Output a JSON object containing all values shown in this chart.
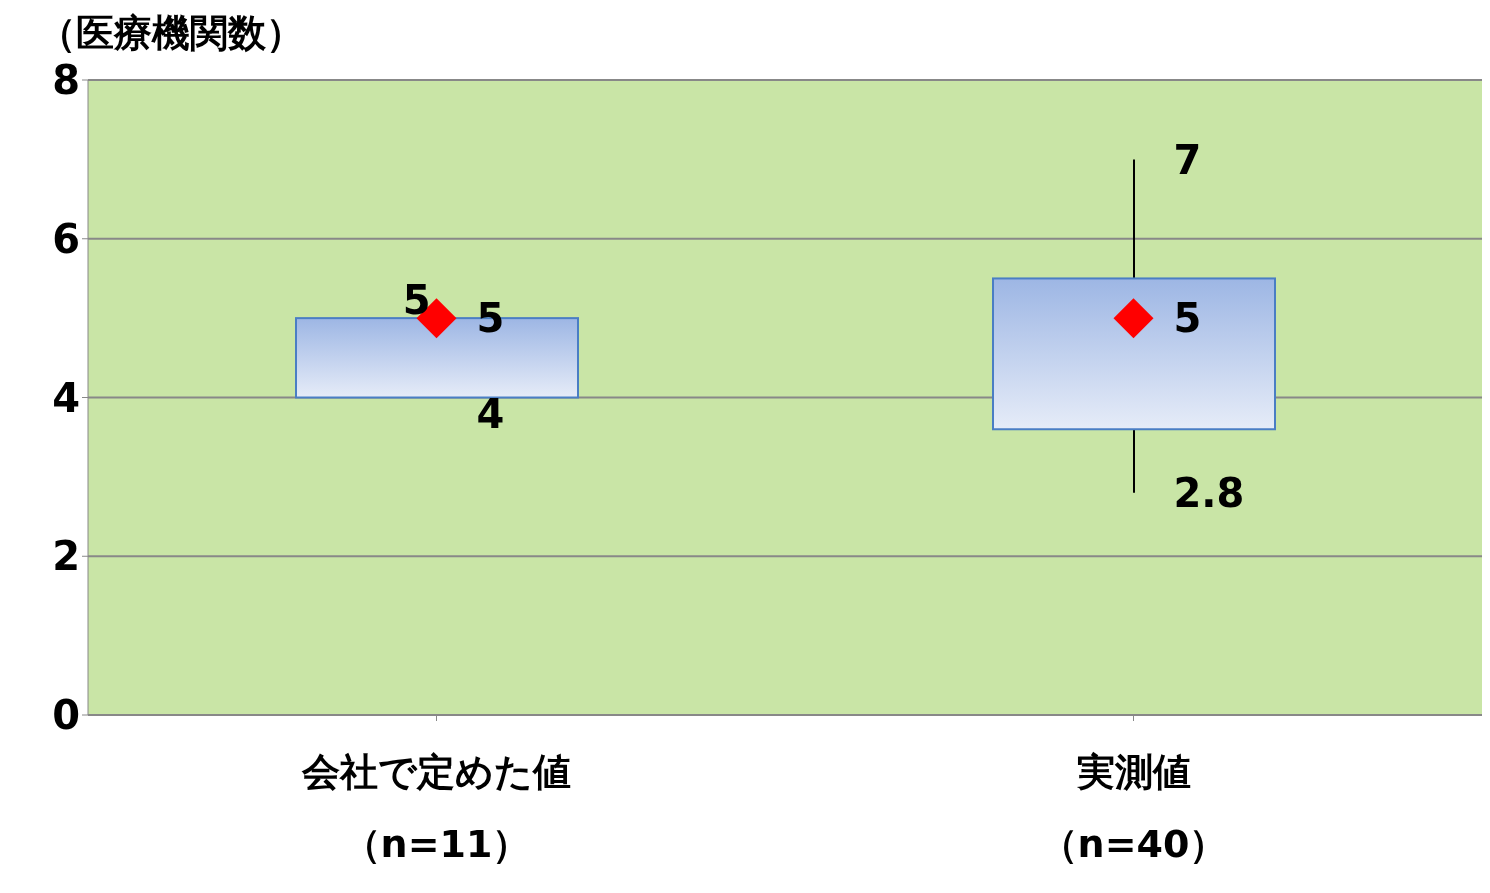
{
  "chart_data": {
    "type": "box",
    "ylabel": "（医療機関数）",
    "categories": [
      "会社で定めた値（n=11）",
      "実測値（n=40）"
    ],
    "boxes": [
      {
        "low": 4,
        "q1": 4,
        "median": 5,
        "q3": 5,
        "high": 5
      },
      {
        "low": 2.8,
        "q1": 3.6,
        "median": 5,
        "q3": 5.5,
        "high": 7
      }
    ],
    "color": "#4a7ec4",
    "marker": "diamond",
    "ylim": [
      0,
      8
    ],
    "yticks": [
      0,
      2,
      4,
      6,
      8
    ],
    "grid": "y",
    "annotations": [
      {
        "text": "5",
        "x": "会社で定めた値（n=11）",
        "y": 5
      },
      {
        "text": "5",
        "x": "会社で定めた値（n=11）",
        "y": 5
      },
      {
        "text": "4",
        "x": "会社で定めた値（n=11）",
        "y": 4
      },
      {
        "text": "7",
        "x": "実測値（n=40）",
        "y": 7
      },
      {
        "text": "5",
        "x": "実測値（n=40）",
        "y": 5
      },
      {
        "text": "2.8",
        "x": "実測値（n=40）",
        "y": 2.8
      }
    ]
  }
}
